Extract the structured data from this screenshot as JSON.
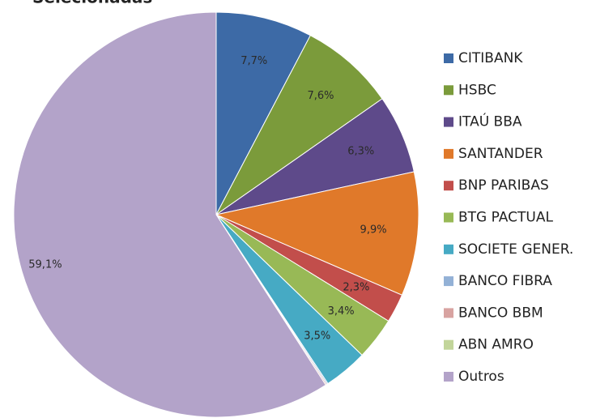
{
  "chart_data": {
    "type": "pie",
    "title": "Selecionadas",
    "categories": [
      "CITIBANK",
      "HSBC",
      "ITAÚ BBA",
      "SANTANDER",
      "BNP PARIBAS",
      "BTG PACTUAL",
      "SOCIETE GENER.",
      "BANCO FIBRA",
      "BANCO BBM",
      "ABN AMRO",
      "Outros"
    ],
    "values": [
      7.7,
      7.6,
      6.3,
      9.9,
      2.3,
      3.4,
      3.5,
      0.1,
      0.1,
      0,
      59.1
    ],
    "value_labels": [
      "7,7%",
      "7,6%",
      "6,3%",
      "9,9%",
      "2,3%",
      "3,4%",
      "3,5%",
      null,
      null,
      null,
      "59,1%"
    ],
    "colors": [
      "#3d6aa6",
      "#7b9b3b",
      "#5e4a8a",
      "#e0792a",
      "#c24e4b",
      "#98b956",
      "#46aac4",
      "#93b1d6",
      "#d8a3a1",
      "#c2d59a",
      "#b3a3c9"
    ],
    "legend": "right"
  }
}
